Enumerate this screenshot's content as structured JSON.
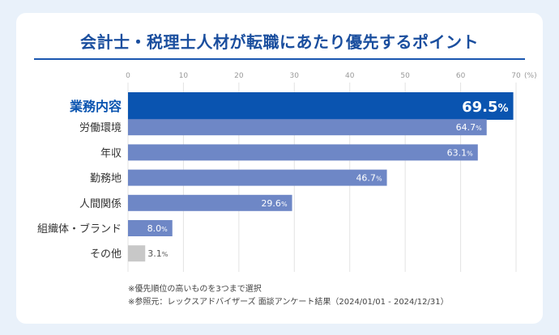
{
  "chart_data": {
    "type": "bar",
    "orientation": "horizontal",
    "title": "会計士・税理士人材が転職にあたり優先するポイント",
    "categories": [
      "業務内容",
      "労働環境",
      "年収",
      "勤務地",
      "人間関係",
      "組織体・ブランド",
      "その他"
    ],
    "values": [
      69.5,
      64.7,
      63.1,
      46.7,
      29.6,
      8.0,
      3.1
    ],
    "value_labels": [
      "69.5",
      "64.7",
      "63.1",
      "46.7",
      "29.6",
      "8.0",
      "3.1"
    ],
    "unit": "%",
    "xticks": [
      "0",
      "10",
      "20",
      "30",
      "40",
      "50",
      "60",
      "70"
    ],
    "xunit_label": "(%)",
    "xlim": [
      0,
      70
    ],
    "highlight_index": 0,
    "colors": {
      "highlight": "#0a54b0",
      "bar": "#6e87c6",
      "other": "#c8c8c8",
      "highlight_label": "#0a54b0",
      "label": "#333333",
      "tick": "#999999",
      "grid": "#e3e3e3"
    }
  },
  "notes": [
    "※優先順位の高いものを3つまで選択",
    "※参照元：レックスアドバイザーズ 面談アンケート結果（2024/01/01 - 2024/12/31）"
  ]
}
